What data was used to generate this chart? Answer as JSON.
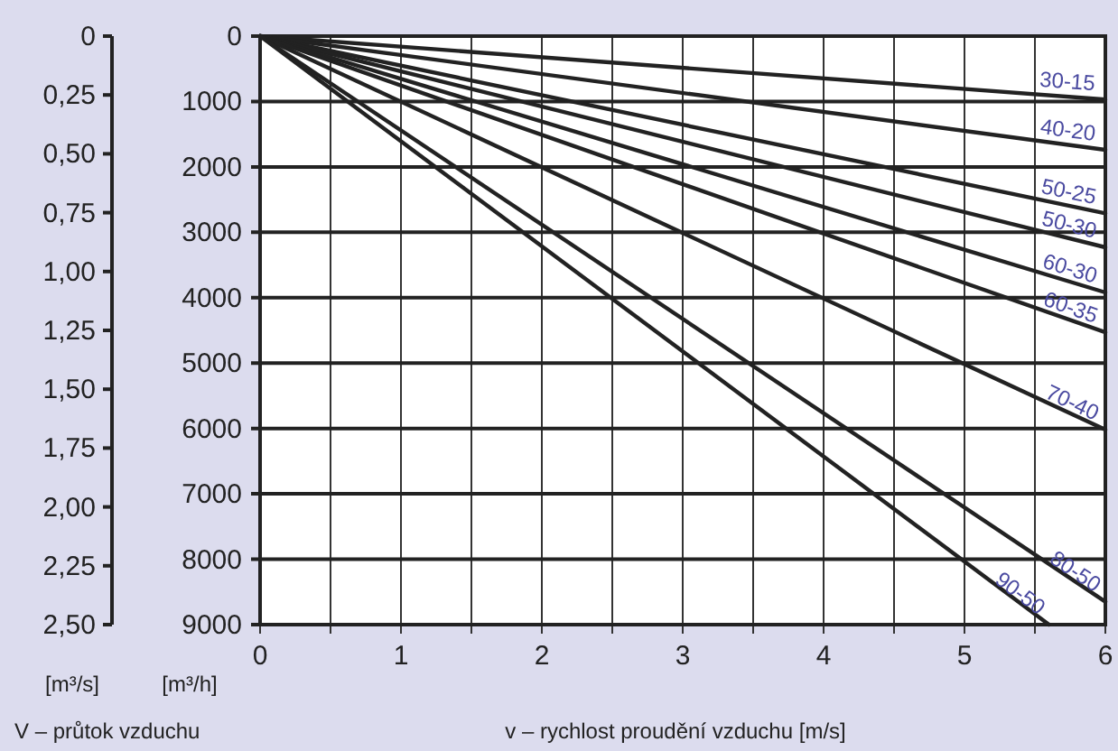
{
  "chart_data": {
    "type": "line",
    "xlabel": "v – rychlost proudění vzduchu [m/s]",
    "ylabel": "[m³/h]",
    "y2label": "[m³/s]",
    "annotations": [
      "V – průtok vzduchu"
    ],
    "x": [
      0,
      6
    ],
    "xlim": [
      0,
      6
    ],
    "xticks": [
      0,
      {
        "value": 0.5,
        "label": null
      },
      1,
      {
        "value": 1.5,
        "label": null
      },
      2,
      {
        "value": 2.5,
        "label": null
      },
      3,
      {
        "value": 3.5,
        "label": null
      },
      4,
      {
        "value": 4.5,
        "label": null
      },
      5,
      {
        "value": 5.5,
        "label": null
      },
      6
    ],
    "ylim": [
      9000,
      0
    ],
    "yticks": [
      0,
      1000,
      2000,
      3000,
      4000,
      5000,
      6000,
      7000,
      8000,
      9000
    ],
    "y2lim": [
      2.5,
      0
    ],
    "y2ticks": [
      0,
      {
        "value": 0.25,
        "label": "0,25"
      },
      {
        "value": 0.5,
        "label": "0,50"
      },
      {
        "value": 0.75,
        "label": "0,75"
      },
      {
        "value": 1,
        "label": "1,00"
      },
      {
        "value": 1.25,
        "label": "1,25"
      },
      {
        "value": 1.5,
        "label": "1,50"
      },
      {
        "value": 1.75,
        "label": "1,75"
      },
      {
        "value": 2,
        "label": "2,00"
      },
      {
        "value": 2.25,
        "label": "2,25"
      },
      {
        "value": 2.5,
        "label": "2,50"
      }
    ],
    "grid": true,
    "series": [
      {
        "name": "30-15",
        "color": "#222222",
        "values": [
          0,
          970
        ]
      },
      {
        "name": "40-20",
        "color": "#222222",
        "values": [
          0,
          1740
        ]
      },
      {
        "name": "50-25",
        "color": "#222222",
        "values": [
          0,
          2710
        ]
      },
      {
        "name": "50-30",
        "color": "#222222",
        "values": [
          0,
          3230
        ]
      },
      {
        "name": "60-30",
        "color": "#222222",
        "values": [
          0,
          3920
        ]
      },
      {
        "name": "60-35",
        "color": "#222222",
        "values": [
          0,
          4530
        ]
      },
      {
        "name": "70-40",
        "color": "#222222",
        "values": [
          0,
          6020
        ]
      },
      {
        "name": "80-50",
        "color": "#222222",
        "values": [
          0,
          8650
        ]
      },
      {
        "name": "90-50",
        "color": "#222222",
        "x": [
          0,
          5.6
        ],
        "values": [
          0,
          9000
        ]
      }
    ]
  }
}
